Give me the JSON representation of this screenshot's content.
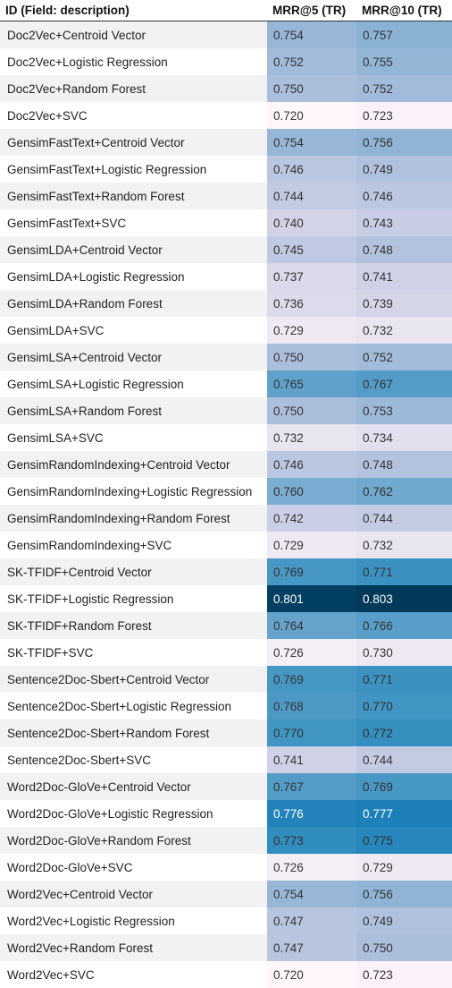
{
  "table": {
    "headers": [
      "ID (Field: description)",
      "MRR@5 (TR)",
      "MRR@10 (TR)"
    ],
    "rows": [
      {
        "id": "Doc2Vec+Centroid Vector",
        "mrr5": "0.754",
        "mrr10": "0.757"
      },
      {
        "id": "Doc2Vec+Logistic Regression",
        "mrr5": "0.752",
        "mrr10": "0.755"
      },
      {
        "id": "Doc2Vec+Random Forest",
        "mrr5": "0.750",
        "mrr10": "0.752"
      },
      {
        "id": "Doc2Vec+SVC",
        "mrr5": "0.720",
        "mrr10": "0.723"
      },
      {
        "id": "GensimFastText+Centroid Vector",
        "mrr5": "0.754",
        "mrr10": "0.756"
      },
      {
        "id": "GensimFastText+Logistic Regression",
        "mrr5": "0.746",
        "mrr10": "0.749"
      },
      {
        "id": "GensimFastText+Random Forest",
        "mrr5": "0.744",
        "mrr10": "0.746"
      },
      {
        "id": "GensimFastText+SVC",
        "mrr5": "0.740",
        "mrr10": "0.743"
      },
      {
        "id": "GensimLDA+Centroid Vector",
        "mrr5": "0.745",
        "mrr10": "0.748"
      },
      {
        "id": "GensimLDA+Logistic Regression",
        "mrr5": "0.737",
        "mrr10": "0.741"
      },
      {
        "id": "GensimLDA+Random Forest",
        "mrr5": "0.736",
        "mrr10": "0.739"
      },
      {
        "id": "GensimLDA+SVC",
        "mrr5": "0.729",
        "mrr10": "0.732"
      },
      {
        "id": "GensimLSA+Centroid Vector",
        "mrr5": "0.750",
        "mrr10": "0.752"
      },
      {
        "id": "GensimLSA+Logistic Regression",
        "mrr5": "0.765",
        "mrr10": "0.767"
      },
      {
        "id": "GensimLSA+Random Forest",
        "mrr5": "0.750",
        "mrr10": "0.753"
      },
      {
        "id": "GensimLSA+SVC",
        "mrr5": "0.732",
        "mrr10": "0.734"
      },
      {
        "id": "GensimRandomIndexing+Centroid Vector",
        "mrr5": "0.746",
        "mrr10": "0.748"
      },
      {
        "id": "GensimRandomIndexing+Logistic Regression",
        "mrr5": "0.760",
        "mrr10": "0.762"
      },
      {
        "id": "GensimRandomIndexing+Random Forest",
        "mrr5": "0.742",
        "mrr10": "0.744"
      },
      {
        "id": "GensimRandomIndexing+SVC",
        "mrr5": "0.729",
        "mrr10": "0.732"
      },
      {
        "id": "SK-TFIDF+Centroid Vector",
        "mrr5": "0.769",
        "mrr10": "0.771"
      },
      {
        "id": "SK-TFIDF+Logistic Regression",
        "mrr5": "0.801",
        "mrr10": "0.803"
      },
      {
        "id": "SK-TFIDF+Random Forest",
        "mrr5": "0.764",
        "mrr10": "0.766"
      },
      {
        "id": "SK-TFIDF+SVC",
        "mrr5": "0.726",
        "mrr10": "0.730"
      },
      {
        "id": "Sentence2Doc-Sbert+Centroid Vector",
        "mrr5": "0.769",
        "mrr10": "0.771"
      },
      {
        "id": "Sentence2Doc-Sbert+Logistic Regression",
        "mrr5": "0.768",
        "mrr10": "0.770"
      },
      {
        "id": "Sentence2Doc-Sbert+Random Forest",
        "mrr5": "0.770",
        "mrr10": "0.772"
      },
      {
        "id": "Sentence2Doc-Sbert+SVC",
        "mrr5": "0.741",
        "mrr10": "0.744"
      },
      {
        "id": "Word2Doc-GloVe+Centroid Vector",
        "mrr5": "0.767",
        "mrr10": "0.769"
      },
      {
        "id": "Word2Doc-GloVe+Logistic Regression",
        "mrr5": "0.776",
        "mrr10": "0.777"
      },
      {
        "id": "Word2Doc-GloVe+Random Forest",
        "mrr5": "0.773",
        "mrr10": "0.775"
      },
      {
        "id": "Word2Doc-GloVe+SVC",
        "mrr5": "0.726",
        "mrr10": "0.729"
      },
      {
        "id": "Word2Vec+Centroid Vector",
        "mrr5": "0.754",
        "mrr10": "0.756"
      },
      {
        "id": "Word2Vec+Logistic Regression",
        "mrr5": "0.747",
        "mrr10": "0.749"
      },
      {
        "id": "Word2Vec+Random Forest",
        "mrr5": "0.747",
        "mrr10": "0.750"
      },
      {
        "id": "Word2Vec+SVC",
        "mrr5": "0.720",
        "mrr10": "0.723"
      }
    ]
  },
  "heatmap": {
    "scale_min": 0.72,
    "scale_max": 0.803,
    "color_stops": [
      "#fff7fb",
      "#ece7f2",
      "#d0d1e6",
      "#a6bddb",
      "#74a9cf",
      "#3690c0",
      "#0570b0",
      "#045a8d",
      "#023858"
    ]
  }
}
